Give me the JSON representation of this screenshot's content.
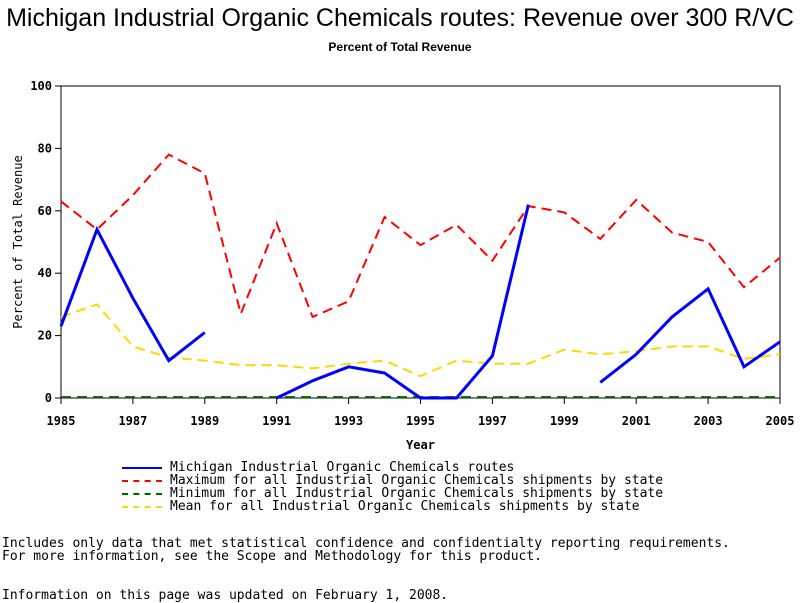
{
  "page": {
    "title": "Michigan Industrial Organic Chemicals routes: Revenue over 300 R/VC",
    "subtitle": "Percent of Total Revenue",
    "notes": [
      "Includes only data that met statistical confidence and confidentialty reporting requirements.",
      "For more information, see the Scope and Methodology for this product."
    ],
    "updated": "Information on this page was updated on February 1, 2008."
  },
  "chart_data": {
    "type": "line",
    "title": "Michigan Industrial Organic Chemicals routes: Revenue over 300 R/VC",
    "subtitle": "Percent of Total Revenue",
    "xlabel": "Year",
    "ylabel": "Percent of Total Revenue",
    "xlim": [
      1985,
      2005
    ],
    "ylim": [
      0,
      100
    ],
    "xticks": [
      1985,
      1987,
      1989,
      1991,
      1993,
      1995,
      1997,
      1999,
      2001,
      2003,
      2005
    ],
    "yticks": [
      0,
      20,
      40,
      60,
      80,
      100
    ],
    "grid": false,
    "legend_position": "bottom",
    "x": [
      1985,
      1986,
      1987,
      1988,
      1989,
      1990,
      1991,
      1992,
      1993,
      1994,
      1995,
      1996,
      1997,
      1998,
      1999,
      2000,
      2001,
      2002,
      2003,
      2004,
      2005
    ],
    "series": [
      {
        "name": "Michigan Industrial Organic Chemicals routes",
        "color": "#0000ff",
        "style": "solid",
        "values": [
          23,
          54,
          32,
          12,
          21,
          null,
          0,
          5.5,
          10,
          8,
          0,
          0,
          13.5,
          62,
          null,
          5,
          14,
          26,
          35,
          10,
          18
        ]
      },
      {
        "name": "Maximum for all Industrial Organic Chemicals shipments by state",
        "color": "#ff0000",
        "style": "dashed",
        "values": [
          63,
          54,
          65,
          78,
          72,
          27,
          56,
          26,
          31,
          58,
          49,
          55.5,
          44,
          61.5,
          59.5,
          51,
          63.5,
          53,
          50,
          35.5,
          45
        ]
      },
      {
        "name": "Minimum for all Industrial Organic Chemicals shipments by state",
        "color": "#006400",
        "style": "dashed",
        "values": [
          0.3,
          0.3,
          0.3,
          0.3,
          0.3,
          0.3,
          0.3,
          0.3,
          0.3,
          0.3,
          0.3,
          0.3,
          0.3,
          0.3,
          0.3,
          0.3,
          0.3,
          0.3,
          0.3,
          0.3,
          0.3
        ]
      },
      {
        "name": "Mean for all Industrial Organic Chemicals shipments by state",
        "color": "#ffd700",
        "style": "dashed",
        "values": [
          26,
          30,
          16.5,
          13,
          12,
          10.5,
          10.5,
          9.5,
          11,
          12,
          7,
          12,
          11,
          11,
          15.5,
          14,
          15,
          16.5,
          16.5,
          12.5,
          14
        ]
      }
    ]
  }
}
